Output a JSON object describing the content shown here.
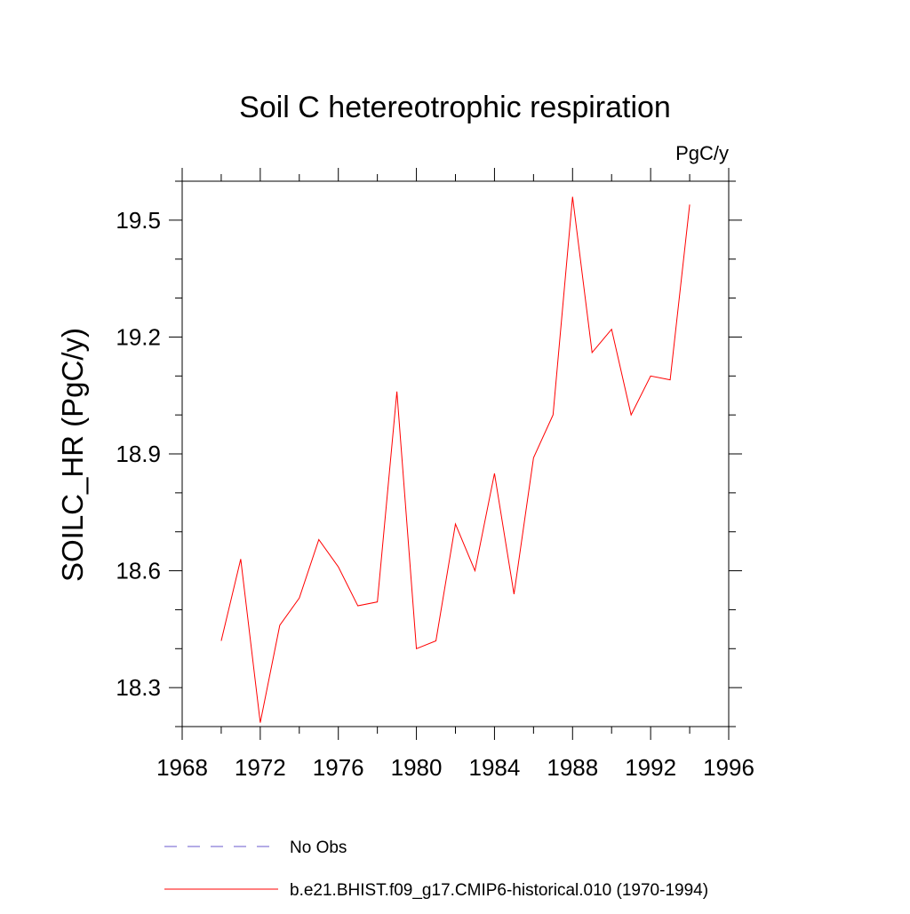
{
  "chart_data": {
    "type": "line",
    "title": "Soil C hetereotrophic respiration",
    "units": "PgC/y",
    "xlabel": "",
    "ylabel": "SOILC_HR  (PgC/y)",
    "xlim": [
      1968,
      1996
    ],
    "ylim": [
      18.2,
      19.6
    ],
    "x_ticks": [
      1968,
      1972,
      1976,
      1980,
      1984,
      1988,
      1992,
      1996
    ],
    "x_tick_labels": [
      "1968",
      "1972",
      "1976",
      "1980",
      "1984",
      "1988",
      "1992",
      "1996"
    ],
    "x_minor_step": 2,
    "y_ticks": [
      18.3,
      18.6,
      18.9,
      19.2,
      19.5
    ],
    "y_tick_labels": [
      "18.3",
      "18.6",
      "18.9",
      "19.2",
      "19.5"
    ],
    "y_minor_step": 0.1,
    "grid": false,
    "legend_position": "bottom",
    "series": [
      {
        "name": "No Obs",
        "color": "#6a5acd",
        "dash": "dashed",
        "x": [],
        "values": []
      },
      {
        "name": "b.e21.BHIST.f09_g17.CMIP6-historical.010 (1970-1994)",
        "color": "#ff0000",
        "dash": "solid",
        "x": [
          1970,
          1971,
          1972,
          1973,
          1974,
          1975,
          1976,
          1977,
          1978,
          1979,
          1980,
          1981,
          1982,
          1983,
          1984,
          1985,
          1986,
          1987,
          1988,
          1989,
          1990,
          1991,
          1992,
          1993,
          1994
        ],
        "values": [
          18.42,
          18.63,
          18.21,
          18.46,
          18.53,
          18.68,
          18.61,
          18.51,
          18.52,
          19.06,
          18.4,
          18.42,
          18.72,
          18.6,
          18.85,
          18.54,
          18.89,
          19.0,
          19.56,
          19.16,
          19.22,
          19.0,
          19.1,
          19.09,
          19.54
        ]
      }
    ]
  }
}
